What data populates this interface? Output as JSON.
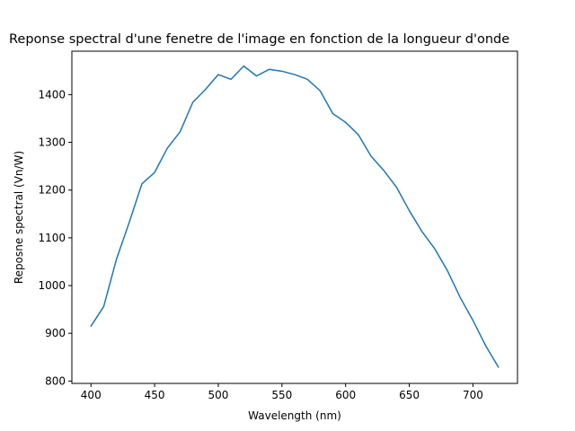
{
  "chart_data": {
    "type": "line",
    "title": "Reponse spectral d'une fenetre de l'image en fonction de la longueur d'onde",
    "xlabel": "Wavelength (nm)",
    "ylabel": "Reposne spectral (Vn/W)",
    "xlim": [
      385,
      735
    ],
    "ylim": [
      795,
      1491
    ],
    "xticks": [
      400,
      450,
      500,
      550,
      600,
      650,
      700
    ],
    "yticks": [
      800,
      900,
      1000,
      1100,
      1200,
      1300,
      1400
    ],
    "grid": false,
    "series": [
      {
        "color": "#1f77b4",
        "x": [
          400,
          410,
          420,
          430,
          440,
          450,
          460,
          470,
          480,
          490,
          500,
          510,
          520,
          530,
          540,
          550,
          560,
          570,
          580,
          590,
          600,
          610,
          620,
          630,
          640,
          650,
          660,
          670,
          680,
          690,
          700,
          710,
          720
        ],
        "y": [
          915,
          956,
          1055,
          1132,
          1213,
          1237,
          1288,
          1322,
          1384,
          1411,
          1442,
          1432,
          1460,
          1439,
          1453,
          1449,
          1442,
          1432,
          1408,
          1360,
          1342,
          1316,
          1271,
          1241,
          1206,
          1157,
          1113,
          1077,
          1031,
          975,
          927,
          874,
          829
        ]
      }
    ]
  }
}
